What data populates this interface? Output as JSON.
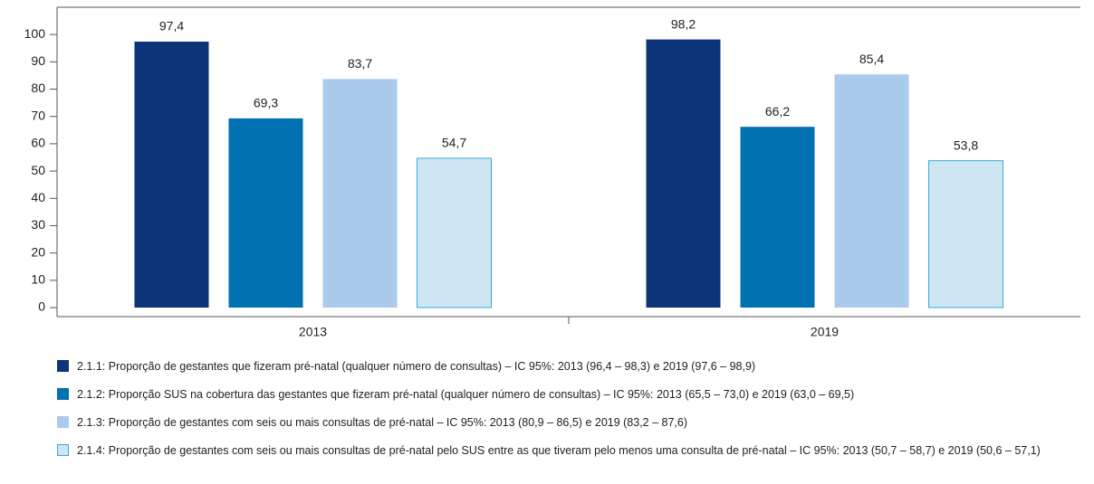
{
  "chart_data": {
    "type": "bar",
    "categories": [
      "2013",
      "2019"
    ],
    "series": [
      {
        "name": "2.1.1: Proporção de gestantes que fizeram pré-natal (qualquer número de consultas) – IC 95%: 2013 (96,4 – 98,3) e 2019 (97,6 – 98,9)",
        "color": "#0b3479",
        "values": [
          97.4,
          98.2
        ],
        "value_labels": [
          "97,4",
          "98,2"
        ]
      },
      {
        "name": "2.1.2: Proporção SUS na cobertura das gestantes que fizeram pré-natal (qualquer número de consultas) – IC 95%: 2013 (65,5 – 73,0) e 2019 (63,0 – 69,5)",
        "color": "#0071b1",
        "values": [
          69.3,
          66.2
        ],
        "value_labels": [
          "69,3",
          "66,2"
        ]
      },
      {
        "name": "2.1.3: Proporção de gestantes com seis ou mais consultas de pré-natal – IC 95%: 2013 (80,9 – 86,5) e 2019 (83,2 – 87,6)",
        "color": "#abcbec",
        "values": [
          83.7,
          85.4
        ],
        "value_labels": [
          "83,7",
          "85,4"
        ]
      },
      {
        "name": "2.1.4: Proporção de gestantes com seis ou mais consultas de pré-natal pelo SUS entre as que tiveram pelo menos uma consulta de pré-natal – IC 95%: 2013 (50,7 – 58,7) e 2019 (50,6 – 57,1)",
        "color": "#cde6f2",
        "edgecolor": "#3aa8d8",
        "values": [
          54.7,
          53.8
        ],
        "value_labels": [
          "54,7",
          "53,8"
        ]
      }
    ],
    "ylim": [
      0,
      110
    ],
    "yticks": [
      0,
      10,
      20,
      30,
      40,
      50,
      60,
      70,
      80,
      90,
      100
    ],
    "grid": false
  }
}
